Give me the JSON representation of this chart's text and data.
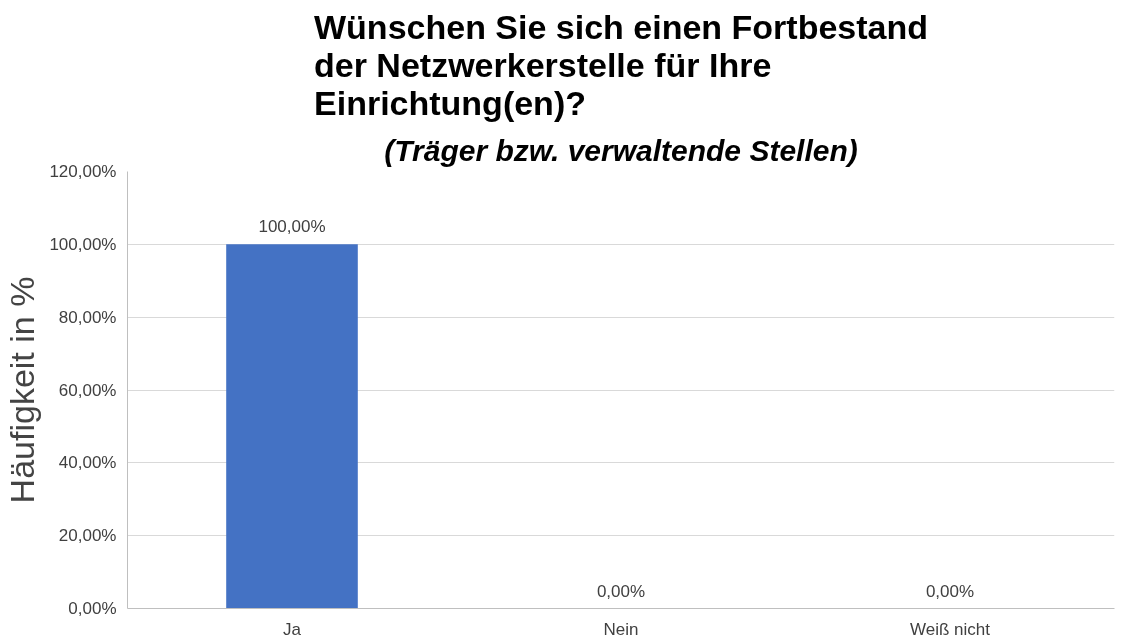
{
  "chart_data": {
    "type": "bar",
    "title": "Wünschen Sie sich einen Fortbestand der Netzwerkerstelle für Ihre Einrichtung(en)?",
    "subtitle": "(Träger bzw. verwaltende Stellen)",
    "ylabel": "Häufigkeit in %",
    "categories": [
      "Ja",
      "Nein",
      "Weiß nicht"
    ],
    "values": [
      100,
      0,
      0
    ],
    "value_labels": [
      "100,00%",
      "0,00%",
      "0,00%"
    ],
    "color": "#4472c4",
    "ylim": [
      0,
      120
    ],
    "yticks": [
      {
        "value": 0,
        "label": "0,00%"
      },
      {
        "value": 20,
        "label": "20,00%"
      },
      {
        "value": 40,
        "label": "40,00%"
      },
      {
        "value": 60,
        "label": "60,00%"
      },
      {
        "value": 80,
        "label": "80,00%"
      },
      {
        "value": 100,
        "label": "100,00%"
      },
      {
        "value": 120,
        "label": "120,00%"
      }
    ],
    "grid": "y"
  }
}
